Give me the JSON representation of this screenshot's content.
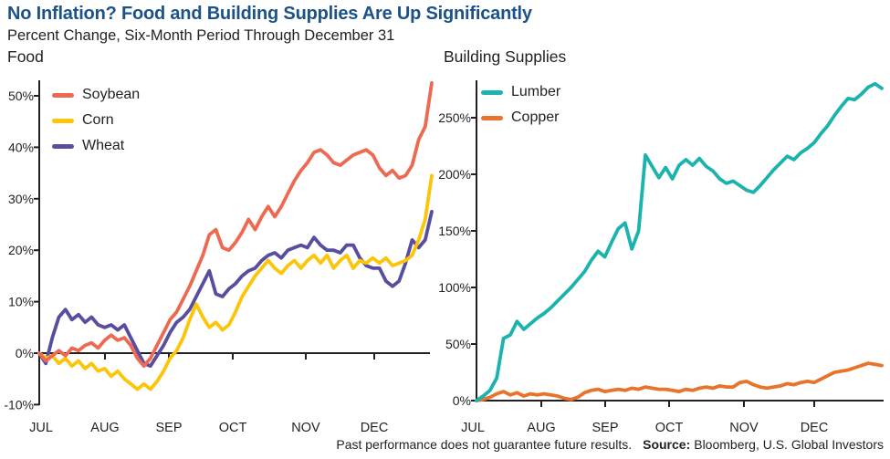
{
  "header": {
    "title": "No Inflation? Food and Building Supplies Are Up Significantly",
    "subtitle": "Percent Change, Six-Month Period Through December 31"
  },
  "footer": {
    "disclaimer": "Past performance does not guarantee future results.",
    "source_label": "Source:",
    "source_text": "Bloomberg, U.S. Global Investors"
  },
  "colors": {
    "title_accent": "#1B5288",
    "text": "#231F20",
    "axis": "#231F20"
  },
  "chart_data": [
    {
      "type": "line",
      "title": "Food",
      "x_categories": [
        "JUL",
        "AUG",
        "SEP",
        "OCT",
        "NOV",
        "DEC"
      ],
      "yticks": [
        "50%",
        "40%",
        "30%",
        "20%",
        "10%",
        "0%",
        "-10%"
      ],
      "ytick_values": [
        50,
        40,
        30,
        20,
        10,
        0,
        -10
      ],
      "ylim": [
        -10,
        53
      ],
      "grid": false,
      "legend_position": "top-left",
      "series": [
        {
          "name": "Soybean",
          "color": "#EC6A52",
          "values": [
            0,
            -1.5,
            -0.5,
            0.5,
            -0.5,
            1,
            0.5,
            1.5,
            2,
            1,
            2.5,
            3.5,
            2.5,
            3,
            1.5,
            -1,
            -2.5,
            -1,
            1.5,
            4,
            6.5,
            8,
            10.5,
            13,
            16,
            19,
            23,
            24,
            20.5,
            20,
            21.5,
            23.5,
            26,
            24,
            26.5,
            28.5,
            26.5,
            28.5,
            31,
            33.5,
            35.5,
            37,
            39,
            39.5,
            38.5,
            37,
            36.5,
            37.5,
            38.5,
            39,
            39.5,
            38.5,
            36,
            34.5,
            35.5,
            34,
            34.5,
            36.5,
            41.5,
            44,
            52.5
          ]
        },
        {
          "name": "Corn",
          "color": "#FCC50A",
          "values": [
            0,
            -1,
            -0.5,
            -2,
            -1,
            -2.5,
            -1.5,
            -3,
            -2,
            -3.5,
            -3,
            -4.5,
            -3.5,
            -5,
            -6,
            -7,
            -6,
            -7,
            -5.5,
            -3.5,
            -1,
            0.5,
            3,
            6.5,
            9.5,
            7,
            5,
            6,
            4.5,
            5.5,
            8,
            11,
            13,
            15,
            16.5,
            18,
            16.5,
            15.5,
            17,
            18,
            16.5,
            18,
            19,
            17.5,
            19,
            16.5,
            18,
            19,
            16.5,
            18,
            17.5,
            18.5,
            17.5,
            18.5,
            17,
            17.5,
            18,
            19,
            22,
            26,
            34.5
          ]
        },
        {
          "name": "Wheat",
          "color": "#574E9F",
          "values": [
            0,
            -2,
            3,
            7,
            8.5,
            6.5,
            7.5,
            6,
            7,
            5.5,
            5,
            5.5,
            4.5,
            5.5,
            3,
            0.5,
            -2,
            -2.5,
            -0.5,
            1.5,
            4,
            6,
            7,
            8.5,
            11,
            13.5,
            16,
            11.5,
            11,
            12.5,
            13.5,
            15,
            16,
            16.5,
            18,
            19,
            19.5,
            18.5,
            20,
            20.5,
            21,
            20.5,
            22.5,
            21,
            20,
            20,
            19.5,
            21,
            21,
            18.5,
            17,
            16.5,
            16.5,
            14,
            13,
            14,
            17.5,
            22,
            20.5,
            22,
            27.5
          ]
        }
      ]
    },
    {
      "type": "line",
      "title": "Building Supplies",
      "x_categories": [
        "JUL",
        "AUG",
        "SEP",
        "OCT",
        "NOV",
        "DEC"
      ],
      "yticks": [
        "250%",
        "200%",
        "150%",
        "100%",
        "50%",
        "0%"
      ],
      "ytick_values": [
        250,
        200,
        150,
        100,
        50,
        0
      ],
      "ylim": [
        0,
        285
      ],
      "grid": false,
      "legend_position": "top-left",
      "series": [
        {
          "name": "Lumber",
          "color": "#1AB3AE",
          "values": [
            0,
            4,
            9,
            20,
            55,
            58,
            70,
            63,
            68,
            73,
            77,
            82,
            88,
            94,
            100,
            107,
            114,
            124,
            132,
            127,
            140,
            152,
            157,
            134,
            150,
            217,
            207,
            197,
            206,
            196,
            208,
            213,
            208,
            214,
            207,
            203,
            196,
            192,
            194,
            190,
            186,
            184,
            190,
            197,
            204,
            210,
            216,
            213,
            219,
            223,
            228,
            236,
            243,
            252,
            260,
            267,
            266,
            271,
            277,
            280,
            276
          ]
        },
        {
          "name": "Copper",
          "color": "#E8732A",
          "values": [
            0,
            1,
            3,
            6,
            8,
            5,
            7,
            4,
            6,
            5,
            6,
            5,
            4,
            2,
            1,
            3,
            7,
            9,
            10,
            8,
            9,
            10,
            9,
            11,
            10,
            12,
            11,
            10,
            10,
            9,
            8,
            10,
            9,
            11,
            12,
            11,
            13,
            12,
            12,
            16,
            17,
            14,
            12,
            11,
            12,
            13,
            15,
            14,
            16,
            17,
            16,
            19,
            22,
            25,
            26,
            27,
            29,
            31,
            33,
            32,
            31
          ]
        }
      ]
    }
  ]
}
